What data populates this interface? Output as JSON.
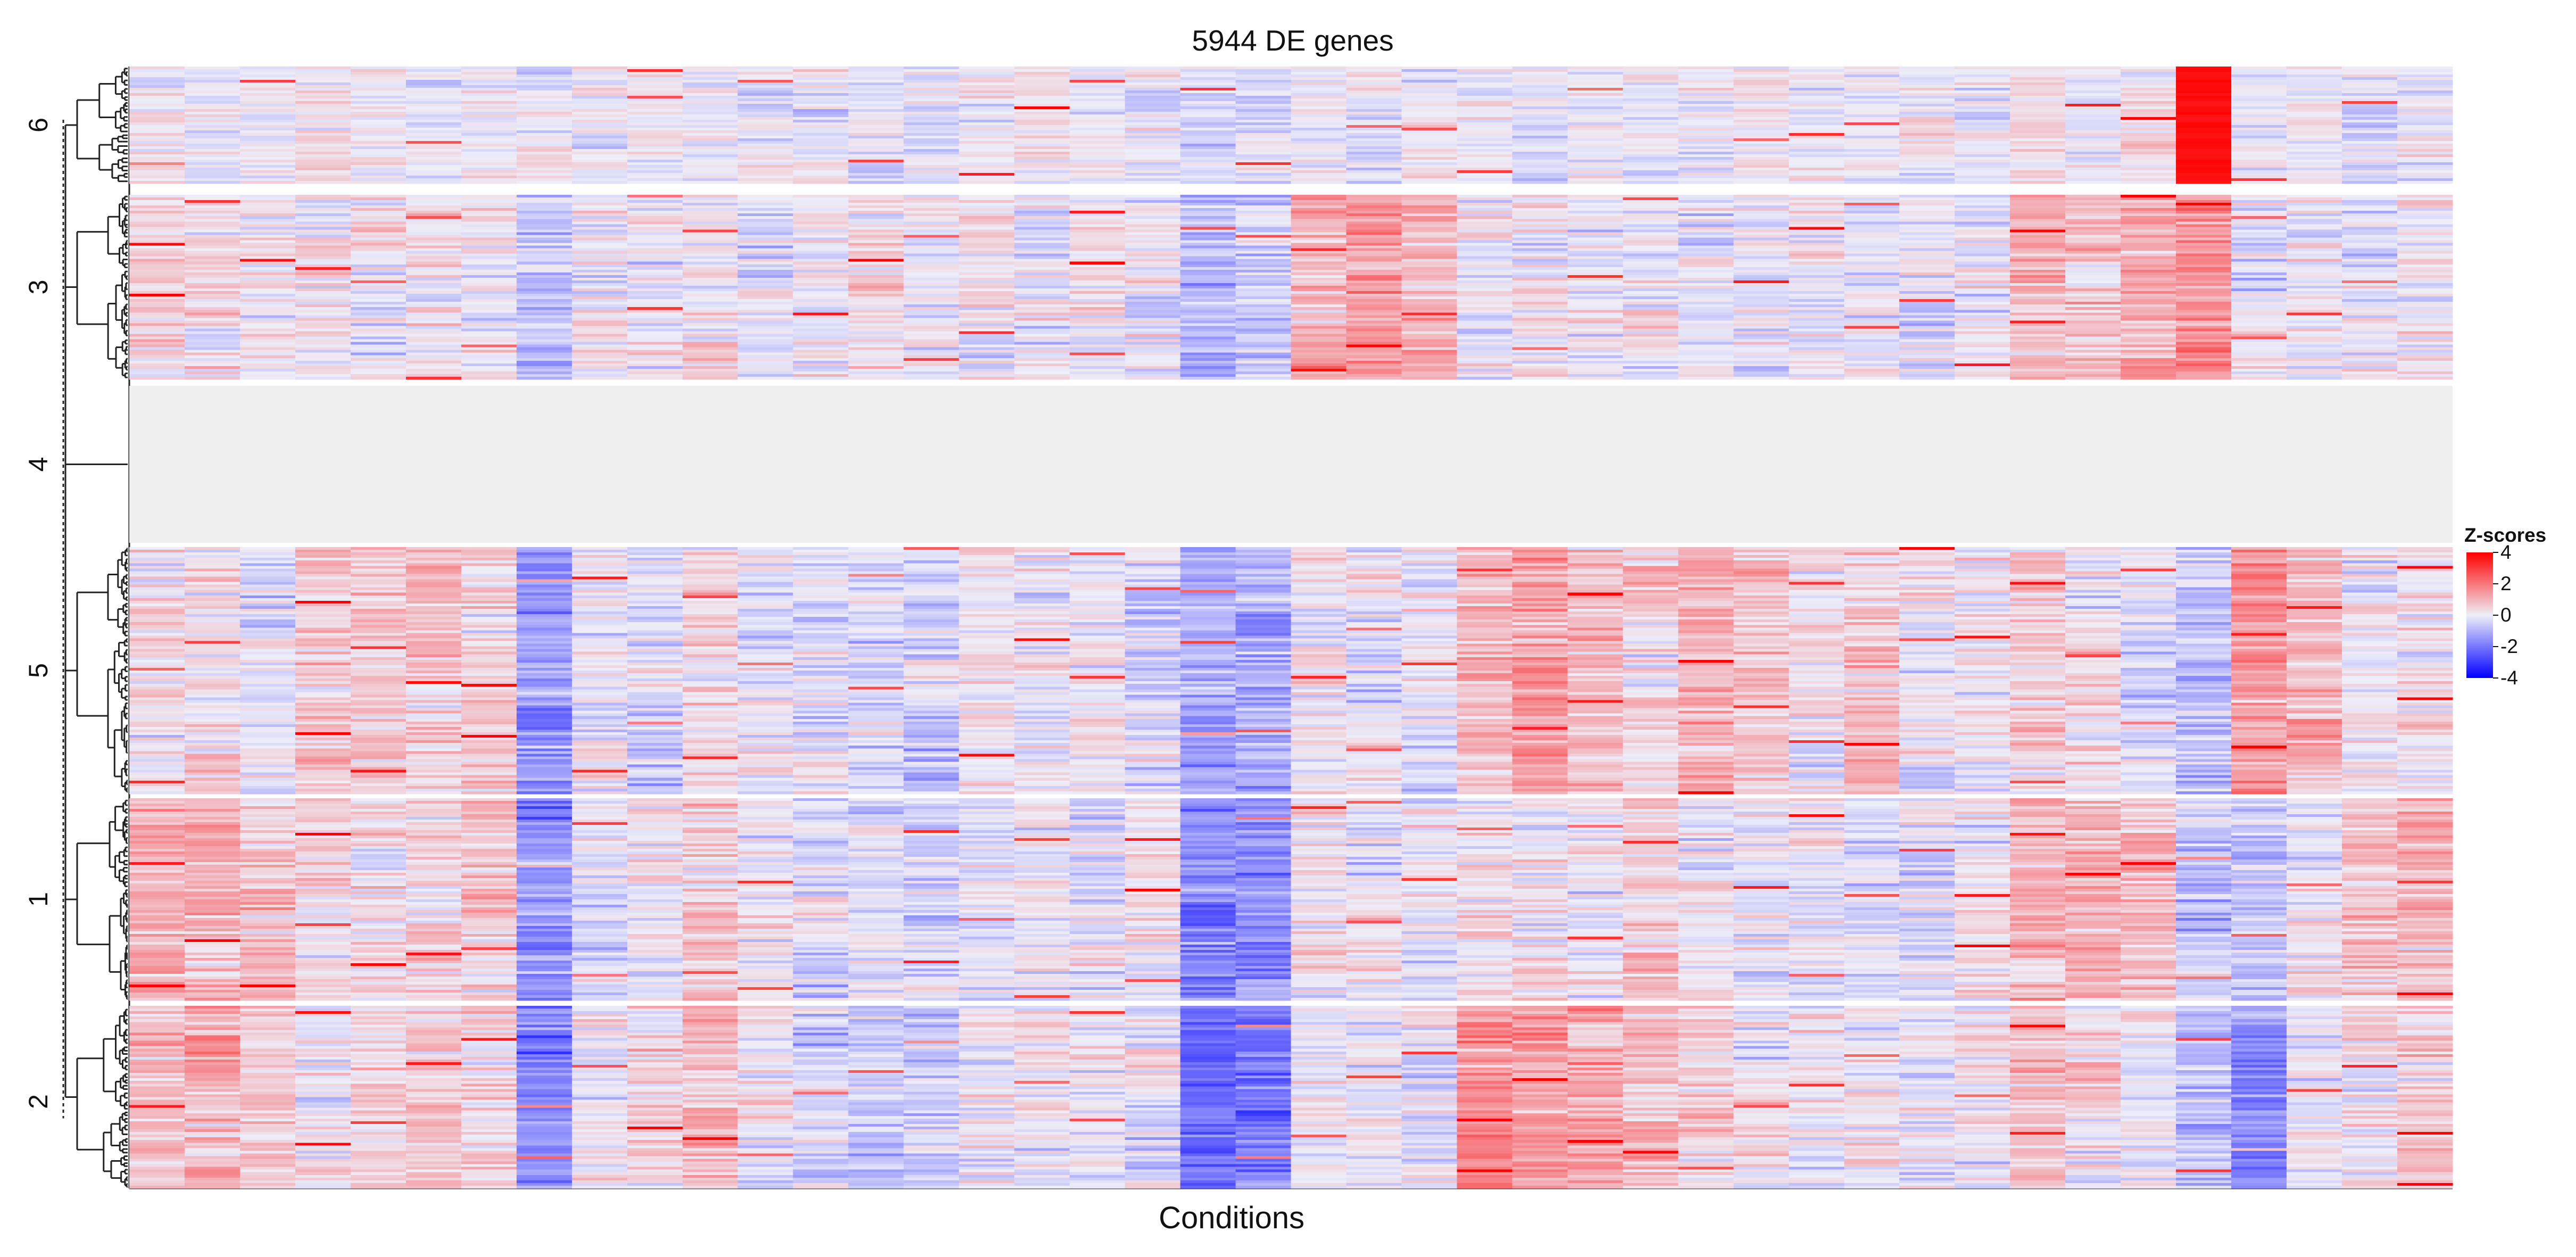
{
  "chart_data": {
    "type": "heatmap",
    "title": "5944 DE genes",
    "xlabel": "Conditions",
    "ylabel": "",
    "n_conditions": 42,
    "legend": {
      "title": "Z-scores",
      "ticks": [
        4,
        2,
        0,
        -2,
        -4
      ],
      "colors": {
        "low": "#0000ff",
        "mid": "#eeeef8",
        "high": "#ff0000",
        "na": "#efefef"
      },
      "placement": "right"
    },
    "row_clusters": [
      {
        "label": "6",
        "genes_fraction": 0.1,
        "pattern": "low variance; strongly up in conditions 36–38"
      },
      {
        "label": "3",
        "genes_fraction": 0.16,
        "pattern": "mixed; block highs in conditions 21–26 and 34–37"
      },
      {
        "label": "4",
        "genes_fraction": 0.14,
        "pattern": "no variance (constant, grey)"
      },
      {
        "label": "5",
        "genes_fraction": 0.22,
        "pattern": "up in conditions 25–31 and 38–40; down in 8 and 20–21"
      },
      {
        "label": "1",
        "genes_fraction": 0.17,
        "pattern": "up in 1–3, 34–36, 41–42; down in 8 and 20–21"
      },
      {
        "label": "2",
        "genes_fraction": 0.16,
        "pattern": "up in 2, 12, 24–27; strongly down in 8 and 20–21"
      }
    ],
    "column_means": {
      "6": [
        0,
        0,
        0,
        0,
        0,
        0,
        0,
        -0.2,
        0,
        0,
        0,
        0,
        0,
        0,
        0,
        0,
        0,
        0,
        0,
        -0.4,
        -0.3,
        0,
        0,
        0,
        0,
        0,
        0,
        0,
        0,
        0,
        0,
        0,
        0,
        0,
        0.5,
        0,
        0.4,
        3.8,
        0,
        0,
        0,
        0
      ],
      "3": [
        0.3,
        0.4,
        0.2,
        0.2,
        0.2,
        0.1,
        0.3,
        -0.8,
        0,
        0,
        0.2,
        0,
        0.1,
        0.5,
        0.1,
        0.3,
        0,
        0,
        0,
        -1.0,
        -0.7,
        1.4,
        1.6,
        1.4,
        0,
        0,
        0,
        0,
        0,
        0,
        0,
        0,
        0,
        0,
        1.0,
        0.9,
        1.4,
        1.8,
        0,
        0,
        0,
        0.2
      ],
      "4": [],
      "5": [
        0.2,
        0.3,
        0,
        0.8,
        0.9,
        1.0,
        0.4,
        -1.6,
        0,
        -0.3,
        0.3,
        0,
        -0.2,
        -0.4,
        -0.5,
        0.3,
        0,
        0.2,
        -0.2,
        -1.5,
        -1.2,
        0.1,
        0,
        0,
        1.1,
        1.5,
        1.0,
        0.6,
        1.3,
        1.0,
        0.3,
        0.9,
        0,
        0.2,
        0.6,
        0.3,
        -0.2,
        -0.8,
        1.6,
        1.1,
        0.2,
        0.3
      ],
      "1": [
        1.4,
        1.3,
        1.0,
        0.3,
        0.4,
        0.5,
        0.8,
        -1.8,
        -0.1,
        0.1,
        0.6,
        0.1,
        -0.3,
        -0.1,
        -0.4,
        0,
        0,
        0,
        0,
        -2.0,
        -1.8,
        0.2,
        0.1,
        0,
        0.3,
        0.2,
        0,
        0.6,
        0.3,
        0,
        0,
        -0.3,
        0,
        0,
        1.2,
        1.3,
        1.0,
        -0.6,
        -0.8,
        0.2,
        1.0,
        1.0
      ],
      "2": [
        1.0,
        1.3,
        0.8,
        0.1,
        0.7,
        0.8,
        0.8,
        -2.2,
        0,
        0.6,
        1.0,
        0.1,
        -0.5,
        -0.6,
        -0.6,
        0.1,
        0,
        0,
        -0.1,
        -2.5,
        -2.3,
        0.2,
        0,
        0.1,
        1.8,
        1.6,
        1.5,
        1.0,
        0.6,
        0.2,
        0.1,
        0.2,
        0,
        0,
        0.9,
        0.5,
        0,
        -0.8,
        -1.9,
        0,
        0.5,
        0.6
      ]
    }
  }
}
